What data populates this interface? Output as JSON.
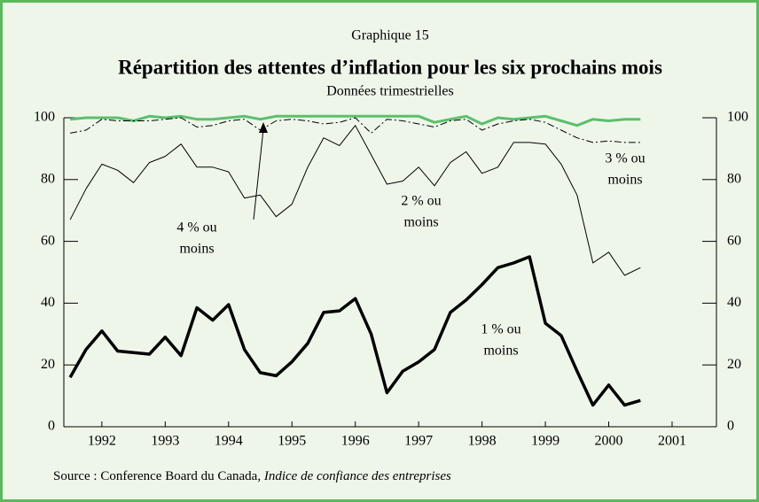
{
  "header": "Graphique 15",
  "chart_data": {
    "type": "line",
    "title": "Répartition des attentes d’inflation pour les six prochains mois",
    "subtitle": "Données trimestrielles",
    "x": [
      1992.0,
      1992.25,
      1992.5,
      1992.75,
      1993.0,
      1993.25,
      1993.5,
      1993.75,
      1994.0,
      1994.25,
      1994.5,
      1994.75,
      1995.0,
      1995.25,
      1995.5,
      1995.75,
      1996.0,
      1996.25,
      1996.5,
      1996.75,
      1997.0,
      1997.25,
      1997.5,
      1997.75,
      1998.0,
      1998.25,
      1998.5,
      1998.75,
      1999.0,
      1999.25,
      1999.5,
      1999.75,
      2000.0,
      2000.25,
      2000.5,
      2000.75,
      2001.0
    ],
    "xlim": [
      1991.9,
      2002.2
    ],
    "xticks": [
      {
        "value": 1992.5,
        "label": "1992"
      },
      {
        "value": 1993.5,
        "label": "1993"
      },
      {
        "value": 1994.5,
        "label": "1994"
      },
      {
        "value": 1995.5,
        "label": "1995"
      },
      {
        "value": 1996.5,
        "label": "1996"
      },
      {
        "value": 1997.5,
        "label": "1997"
      },
      {
        "value": 1998.5,
        "label": "1998"
      },
      {
        "value": 1999.5,
        "label": "1999"
      },
      {
        "value": 2000.5,
        "label": "2000"
      },
      {
        "value": 2001.5,
        "label": "2001"
      }
    ],
    "ylim": [
      0,
      100
    ],
    "yticks": [
      0,
      20,
      40,
      60,
      80,
      100
    ],
    "series": [
      {
        "label": [
          "4 % ou",
          "moins"
        ],
        "color": "#5cbf6c",
        "style": "solid",
        "width": 3,
        "values": [
          99.5,
          100,
          100,
          100,
          99,
          100.5,
          100,
          100.5,
          99.5,
          99.5,
          100,
          100.5,
          99.5,
          100.5,
          100.5,
          100.5,
          100.5,
          100.5,
          100.5,
          100.5,
          100.5,
          100.5,
          100.5,
          98.5,
          99.5,
          100.5,
          98,
          100,
          99.5,
          100,
          100.5,
          99,
          97.5,
          99.5,
          99,
          99.5,
          99.5
        ]
      },
      {
        "label": [
          "3 % ou",
          "moins"
        ],
        "color": "#000000",
        "style": "dashdot",
        "width": 1,
        "values": [
          95,
          96,
          99.5,
          99,
          99,
          99,
          99.5,
          100,
          97,
          97.5,
          99,
          99.5,
          96,
          99,
          99.5,
          99,
          98,
          98.5,
          100,
          95,
          99.5,
          99,
          98,
          97,
          99,
          99.5,
          96,
          98,
          99,
          99.5,
          98.5,
          96,
          93.5,
          92,
          92.5,
          92,
          92
        ]
      },
      {
        "label": [
          "2 % ou",
          "moins"
        ],
        "color": "#000000",
        "style": "solid",
        "width": 1,
        "values": [
          67,
          77,
          85,
          83,
          79,
          85.5,
          87.5,
          91.5,
          84,
          84,
          82.5,
          74,
          75,
          68,
          72,
          84,
          93.5,
          91,
          97.5,
          88,
          78.5,
          79.5,
          84,
          78,
          85.5,
          89,
          82,
          84,
          92,
          92,
          91.5,
          85,
          75,
          53,
          56.5,
          49,
          51.5
        ]
      },
      {
        "label": [
          "1 % ou",
          "moins"
        ],
        "color": "#000000",
        "style": "solid",
        "width": 3.5,
        "values": [
          16,
          25,
          31,
          24.5,
          24,
          23.5,
          29,
          23,
          38.5,
          34.5,
          39.5,
          25,
          17.5,
          16.5,
          21,
          27,
          37,
          37.5,
          41.5,
          30,
          11,
          18,
          21,
          25,
          37,
          41,
          46,
          51.5,
          53,
          55,
          33.5,
          29.5,
          18,
          7,
          13.5,
          7,
          8.5
        ]
      }
    ]
  },
  "source": {
    "text": "Source : Conference Board du Canada, ",
    "title": "Indice de confiance des entreprises"
  }
}
